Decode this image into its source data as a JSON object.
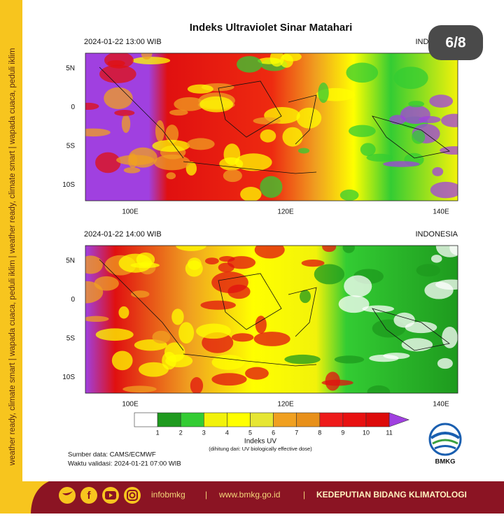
{
  "side_text": "weather ready, climate smart  |  wapada cuaca, peduli iklim  |  weather ready, climate smart  |  wapada cuaca, peduli iklim",
  "title": "Indeks Ultraviolet Sinar Matahari",
  "badge": "6/8",
  "panels": [
    {
      "time": "2024-01-22  13:00 WIB",
      "region": "INDONESIA"
    },
    {
      "time": "2024-01-22  14:00 WIB",
      "region": "INDONESIA"
    }
  ],
  "lat_labels": [
    "5N",
    "0",
    "5S",
    "10S"
  ],
  "lon_labels": [
    "100E",
    "120E",
    "140E"
  ],
  "colorbar": {
    "labels": [
      1,
      2,
      3,
      4,
      5,
      6,
      7,
      8,
      9,
      10,
      11
    ],
    "colors": [
      "#ffffff",
      "#1e9a1e",
      "#33cc33",
      "#f2f20a",
      "#ffff00",
      "#e6e633",
      "#f0a020",
      "#e8901a",
      "#ee1a1a",
      "#e81010",
      "#dd0a0a"
    ],
    "over_color": "#a040e0",
    "title": "Indeks UV",
    "subtitle": "(dihitung dari: UV biologically effective dose)"
  },
  "source": "Sumber data: CAMS/ECMWF",
  "validity": "Waktu validasi: 2024-01-21 07:00 WIB",
  "logo_text": "BMKG",
  "footer": {
    "handle": "infobmkg",
    "sep1": "|",
    "website": "www.bmkg.go.id",
    "sep2": "|",
    "department": "KEDEPUTIAN BIDANG KLIMATOLOGI"
  }
}
